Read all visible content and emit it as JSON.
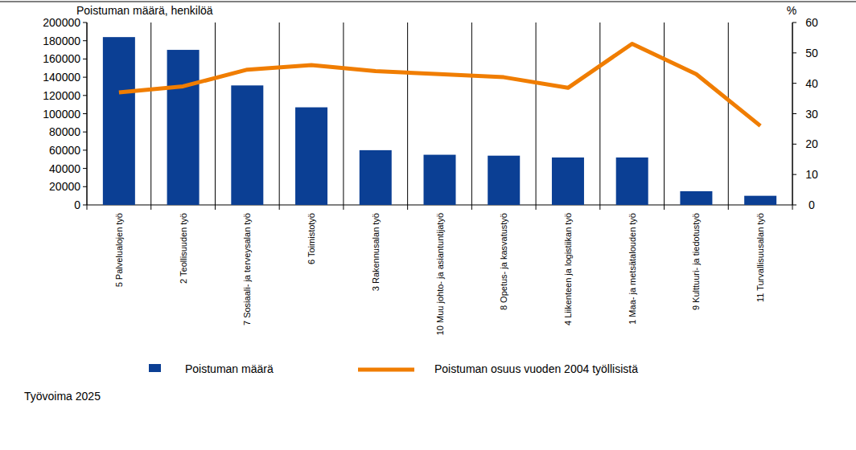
{
  "chart_data": {
    "type": "bar",
    "y_label": "Poistuman määrä, henkilöä",
    "y2_label": "%",
    "annotations": [
      "Työvoima 2025"
    ],
    "categories": [
      "5 Palvelualojen työ",
      "2 Teollisuuden työ",
      "7 Sosiaali- ja terveysalan työ",
      "6 Toimistotyö",
      "3 Rakennusalan työ",
      "10 Muu johto- ja asiantuntijatyö",
      "8 Opetus- ja kasvatustyö",
      "4 Liikenteen ja logistiikan työ",
      "1 Maa- ja metsätalouden työ",
      "9 Kulttuuri- ja tiedotustyö",
      "11 Turvallisuusalan työ"
    ],
    "series": [
      {
        "name": "Poistuman määrä",
        "type": "bar",
        "color": "#0b3f94",
        "values": [
          184000,
          170000,
          131000,
          107000,
          60000,
          55000,
          54000,
          52000,
          52000,
          15000,
          10000
        ]
      },
      {
        "name": "Poistuman osuus vuoden 2004 työllisistä",
        "type": "line",
        "color": "#f07d00",
        "axis": "y2",
        "values": [
          37,
          39,
          44.5,
          46,
          44,
          43,
          42,
          38.5,
          53,
          43,
          26
        ]
      }
    ],
    "ylim": [
      0,
      200000
    ],
    "yticks": [
      0,
      20000,
      40000,
      60000,
      80000,
      100000,
      120000,
      140000,
      160000,
      180000,
      200000
    ],
    "y2lim": [
      0,
      60
    ],
    "y2ticks": [
      0,
      10,
      20,
      30,
      40,
      50,
      60
    ],
    "grid": true,
    "legend": "bottom"
  }
}
